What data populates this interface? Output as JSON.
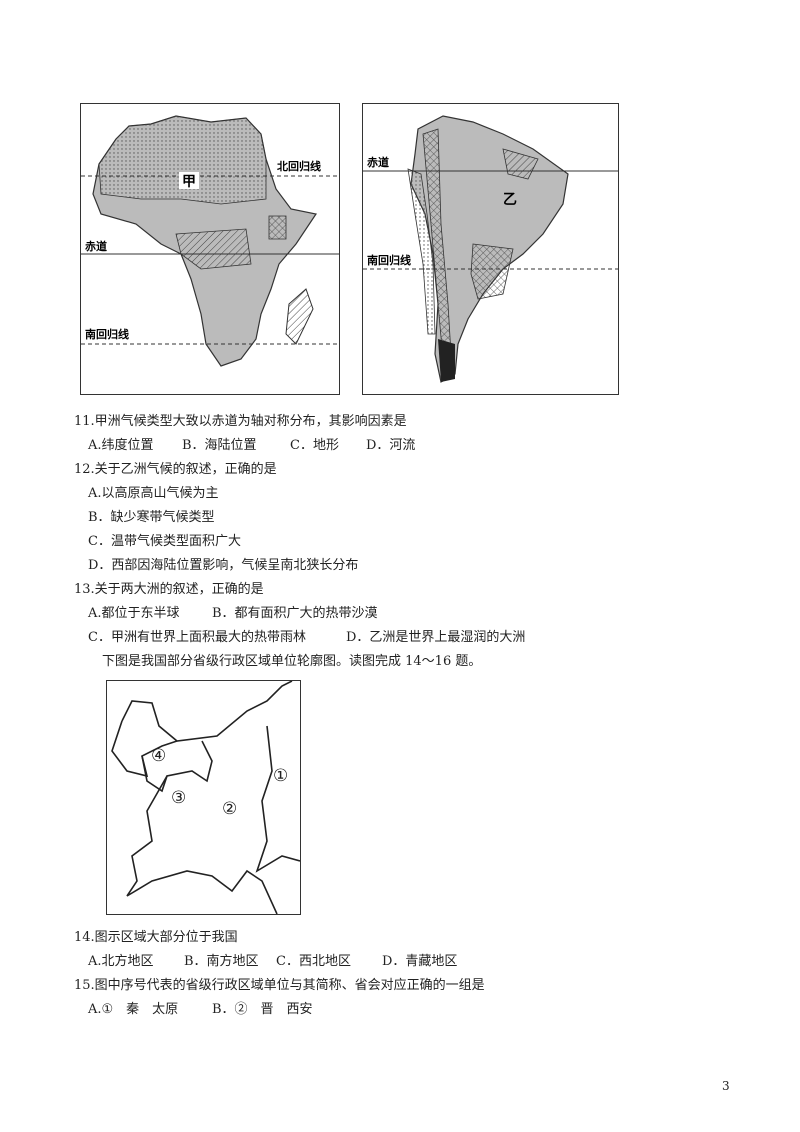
{
  "figure1": {
    "africa": {
      "label": "甲",
      "tropic_north": "北回归线",
      "equator": "赤道",
      "tropic_south": "南回归线"
    },
    "south_america": {
      "label": "乙",
      "equator": "赤道",
      "tropic_south": "南回归线"
    }
  },
  "questions": [
    {
      "stem": "11.甲洲气候类型大致以赤道为轴对称分布，其影响因素是",
      "options": [
        "A.纬度位置",
        "B．海陆位置",
        "C．地形",
        "D．河流"
      ]
    },
    {
      "stem": "12.关于乙洲气候的叙述，正确的是",
      "options": [
        "A.以高原高山气候为主",
        "B．缺少寒带气候类型",
        "C．温带气候类型面积广大",
        "D．西部因海陆位置影响，气候呈南北狭长分布"
      ]
    },
    {
      "stem": "13.关于两大洲的叙述，正确的是",
      "options": [
        "A.都位于东半球",
        "B．都有面积广大的热带沙漠",
        "C．甲洲有世界上面积最大的热带雨林",
        "D．乙洲是世界上最湿润的大洲"
      ]
    }
  ],
  "intro": "下图是我国部分省级行政区域单位轮廓图。读图完成 14～16 题。",
  "figure2": {
    "labels": [
      "①",
      "②",
      "③",
      "④"
    ]
  },
  "questions2": [
    {
      "stem": "14.图示区域大部分位于我国",
      "options": [
        "A.北方地区",
        "B．南方地区",
        "C．西北地区",
        "D．青藏地区"
      ]
    },
    {
      "stem": "15.图中序号代表的省级行政区域单位与其简称、省会对应正确的一组是",
      "options": [
        "A.①　秦　太原",
        "B．②　晋　西安"
      ]
    }
  ],
  "page_number": "3"
}
